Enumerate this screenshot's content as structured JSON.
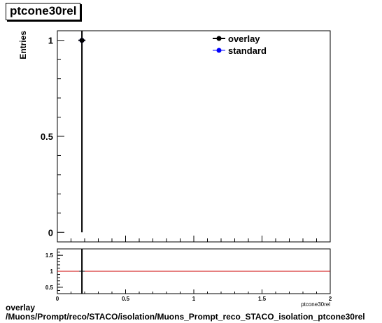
{
  "title": "ptcone30rel",
  "footer": {
    "line1": "overlay",
    "line2": "/Muons/Prompt/reco/STACO/isolation/Muons_Prompt_reco_STACO_isolation_ptcone30rel"
  },
  "colors": {
    "overlay": "#000000",
    "standard": "#0000ff",
    "ratio_line": "#cc0000"
  },
  "chart_data": [
    {
      "type": "line",
      "ylabel": "Entries",
      "xlim": [
        0,
        2
      ],
      "ylim": [
        -0.05,
        1.05
      ],
      "yticks": [
        0,
        0.5,
        1
      ],
      "ytick_labels": [
        "0",
        "0.5",
        "1"
      ],
      "legend": "top-right",
      "series": [
        {
          "name": "overlay",
          "x": [
            0.18
          ],
          "y": [
            1
          ]
        },
        {
          "name": "standard",
          "x": [
            0.18
          ],
          "y": [
            1
          ]
        }
      ],
      "spike": {
        "x": 0.18,
        "y_from": 0,
        "y_to": 1.05
      }
    },
    {
      "type": "line",
      "xlabel": "ptcone30rel",
      "xlim": [
        0,
        2
      ],
      "ylim": [
        0.3,
        1.7
      ],
      "xticks": [
        0,
        0.5,
        1,
        1.5,
        2
      ],
      "xtick_labels": [
        "0",
        "0.5",
        "1",
        "1.5",
        "2"
      ],
      "yticks": [
        0.5,
        1,
        1.5
      ],
      "ytick_labels": [
        "0.5",
        "1",
        "1.5"
      ],
      "reference_line": 1,
      "spike": {
        "x": 0.18
      }
    }
  ]
}
